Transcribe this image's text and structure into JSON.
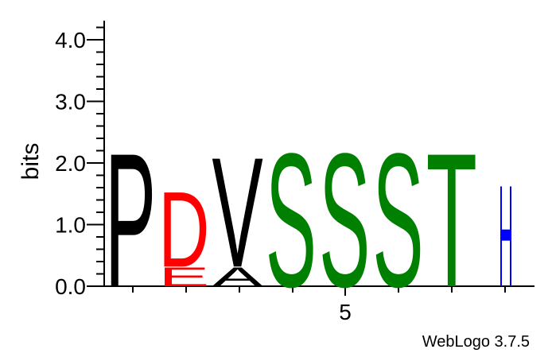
{
  "chart_data": {
    "type": "sequence-logo",
    "ylabel": "bits",
    "ylim": [
      0,
      4.3
    ],
    "y_ticks": [
      "0.0",
      "1.0",
      "2.0",
      "3.0",
      "4.0"
    ],
    "x_tick_label": "5",
    "credit": "WebLogo 3.7.5",
    "colors": {
      "P": "#000000",
      "V": "#000000",
      "A": "#000000",
      "D": "#ff0000",
      "E": "#ff0000",
      "S": "#008000",
      "T": "#008000"
    },
    "positions": [
      {
        "pos": 1,
        "stack": [
          {
            "letter": "P",
            "bits": 2.22
          }
        ]
      },
      {
        "pos": 2,
        "stack": [
          {
            "letter": "E",
            "bits": 0.32
          },
          {
            "letter": "D",
            "bits": 1.25
          }
        ]
      },
      {
        "pos": 3,
        "stack": [
          {
            "letter": "A",
            "bits": 0.32
          },
          {
            "letter": "V",
            "bits": 1.82
          }
        ]
      },
      {
        "pos": 4,
        "stack": [
          {
            "letter": "S",
            "bits": 2.22
          }
        ]
      },
      {
        "pos": 5,
        "stack": [
          {
            "letter": "S",
            "bits": 2.22
          }
        ]
      },
      {
        "pos": 6,
        "stack": [
          {
            "letter": "S",
            "bits": 2.22
          }
        ]
      },
      {
        "pos": 7,
        "stack": [
          {
            "letter": "T",
            "bits": 2.22
          }
        ]
      },
      {
        "pos": 8,
        "stack": [],
        "error_bar": {
          "center": 0.83,
          "low": 0.0,
          "high": 1.62
        }
      }
    ]
  }
}
